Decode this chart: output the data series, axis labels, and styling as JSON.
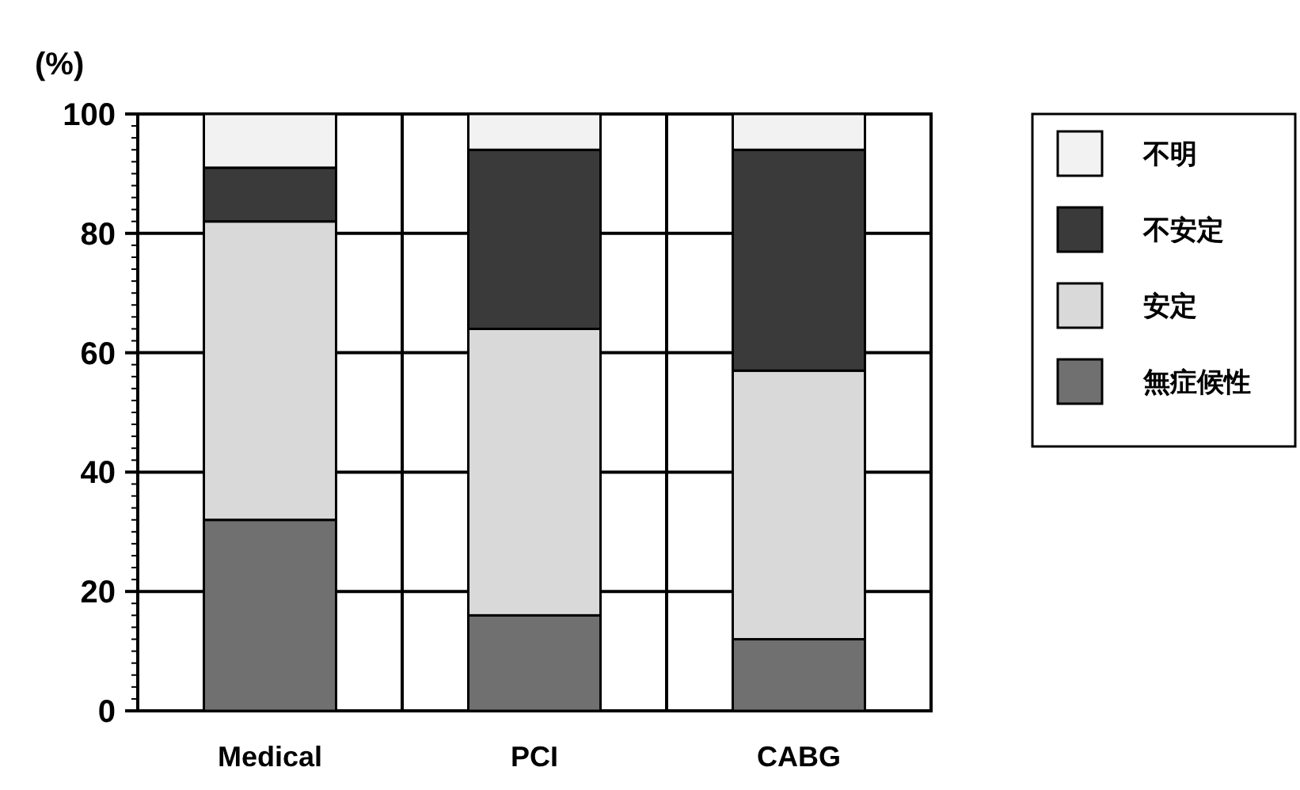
{
  "chart_data": {
    "type": "bar",
    "stacked": true,
    "ylabel": "(%)",
    "categories": [
      "Medical",
      "PCI",
      "CABG"
    ],
    "series": [
      {
        "name": "無症候性",
        "color": "#707070",
        "values": [
          32,
          16,
          12
        ]
      },
      {
        "name": "安定",
        "color": "#d9d9d9",
        "values": [
          50,
          48,
          45
        ]
      },
      {
        "name": "不安定",
        "color": "#3a3a3a",
        "values": [
          9,
          30,
          37
        ]
      },
      {
        "name": "不明",
        "color": "#f2f2f2",
        "values": [
          9,
          6,
          6
        ]
      }
    ],
    "ylim": [
      0,
      100
    ],
    "yticks": [
      0,
      20,
      40,
      60,
      80,
      100
    ],
    "grid": true,
    "legend": "right"
  }
}
